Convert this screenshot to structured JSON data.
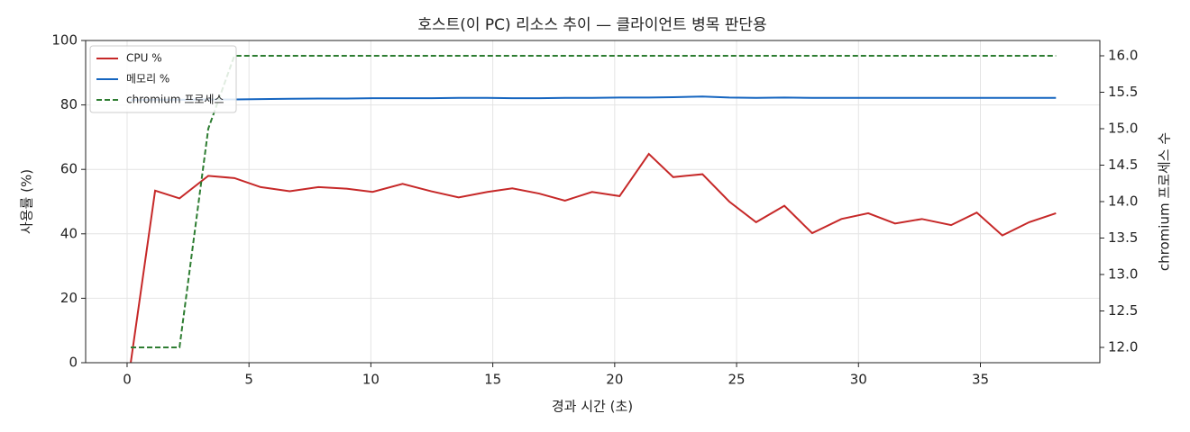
{
  "chart_data": {
    "type": "line",
    "title": "호스트(이 PC) 리소스 추이 — 클라이언트 병목 판단용",
    "x_label": "경과 시간 (초)",
    "y_label": "사용률 (%)",
    "y2_label": "chromium 프로세스 수",
    "x": [
      0.15,
      1.15,
      2.15,
      3.33,
      4.4,
      5.48,
      6.67,
      7.85,
      9.0,
      10.07,
      11.3,
      12.48,
      13.6,
      14.78,
      15.8,
      16.9,
      17.96,
      19.07,
      20.2,
      21.4,
      22.4,
      23.6,
      24.7,
      25.8,
      26.96,
      28.1,
      29.3,
      30.4,
      31.5,
      32.6,
      33.8,
      34.85,
      35.9,
      37.0,
      38.1
    ],
    "series": [
      {
        "name": "CPU %",
        "color": "#c62828",
        "linestyle": "solid",
        "axis": "y",
        "values": [
          0,
          53.4,
          51,
          58,
          57.3,
          54.5,
          53.2,
          54.5,
          54,
          53,
          55.5,
          53.2,
          51.3,
          53,
          54.1,
          52.5,
          50.3,
          53,
          51.7,
          64.8,
          57.6,
          58.5,
          50,
          43.6,
          48.7,
          40.2,
          44.6,
          46.4,
          43.2,
          44.6,
          42.7,
          46.6,
          39.5,
          43.6,
          46.4
        ]
      },
      {
        "name": "메모리 %",
        "color": "#1565c0",
        "linestyle": "solid",
        "axis": "y",
        "values": [
          81.5,
          81.6,
          81.6,
          81.7,
          81.7,
          81.8,
          81.9,
          82,
          82,
          82.1,
          82.1,
          82.1,
          82.2,
          82.2,
          82.1,
          82.1,
          82.2,
          82.2,
          82.3,
          82.3,
          82.4,
          82.6,
          82.3,
          82.2,
          82.3,
          82.2,
          82.2,
          82.2,
          82.2,
          82.2,
          82.2,
          82.2,
          82.2,
          82.2,
          82.2
        ]
      },
      {
        "name": "chromium 프로세스",
        "color": "#2e7d32",
        "linestyle": "dashed",
        "axis": "y2",
        "values": [
          12,
          12,
          12,
          15,
          16,
          16,
          16,
          16,
          16,
          16,
          16,
          16,
          16,
          16,
          16,
          16,
          16,
          16,
          16,
          16,
          16,
          16,
          16,
          16,
          16,
          16,
          16,
          16,
          16,
          16,
          16,
          16,
          16,
          16,
          16
        ]
      }
    ],
    "xlim": [
      -1.7,
      39.9
    ],
    "xticks": [
      0,
      5,
      10,
      15,
      20,
      25,
      30,
      35
    ],
    "ylim": [
      0,
      100
    ],
    "yticks": [
      0,
      20,
      40,
      60,
      80,
      100
    ],
    "y2lim": [
      11.79,
      16.21
    ],
    "y2ticks": [
      {
        "value": 12,
        "label": "12.0"
      },
      12.5,
      {
        "value": 13,
        "label": "13.0"
      },
      13.5,
      {
        "value": 14,
        "label": "14.0"
      },
      14.5,
      {
        "value": 15,
        "label": "15.0"
      },
      15.5,
      {
        "value": 16,
        "label": "16.0"
      }
    ],
    "grid": true,
    "legend": "upper-left"
  }
}
